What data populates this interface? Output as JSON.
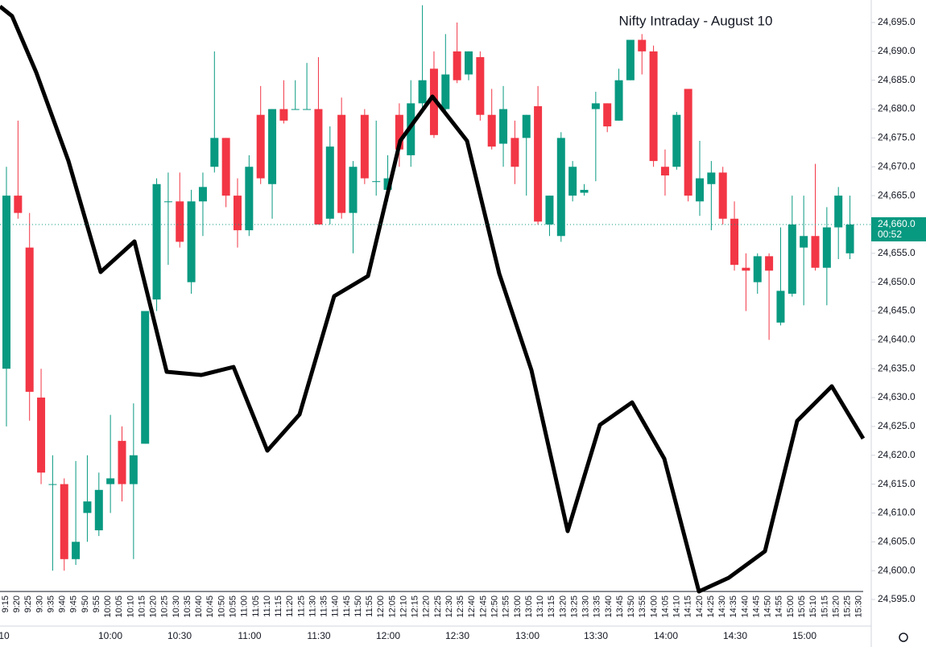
{
  "chart_data": {
    "type": "candlestick",
    "title": "Nifty Intraday - August 10",
    "up_color": "#089981",
    "down_color": "#f23645",
    "open": [
      24635,
      24665,
      24656,
      24630,
      24615,
      24615,
      24602,
      24610,
      24607,
      24615,
      24622.5,
      24615,
      24622,
      24647,
      24664,
      24664,
      24650,
      24664,
      24670,
      24675,
      24665,
      24659,
      24679,
      24667,
      24680,
      24680,
      24680,
      24680,
      24661,
      24679,
      24662,
      24679,
      24667.5,
      24666,
      24679,
      24672,
      24681,
      24687,
      24680,
      24690,
      24686,
      24689,
      24679,
      24674,
      24675,
      24675,
      24680.5,
      24660,
      24658,
      24665,
      24665.5,
      24680,
      24681,
      24678,
      24685,
      24692,
      24690,
      24670,
      24670,
      24683.5,
      24664,
      24667,
      24669,
      24661,
      24652.5,
      24650,
      24654.5,
      24643,
      24648,
      24656,
      24658,
      24652.5,
      24659.5,
      24655
    ],
    "high": [
      24670,
      24678,
      24662,
      24635,
      24620,
      24616,
      24619,
      24620,
      24617,
      24627,
      24625,
      24629,
      24645,
      24668,
      24669,
      24669,
      24666,
      24669,
      24690,
      24675,
      24668,
      24672,
      24684,
      24680,
      24685,
      24685,
      24688,
      24689,
      24677,
      24682,
      24671,
      24680,
      24678,
      24672,
      24681,
      24685,
      24698,
      24690,
      24693,
      24695,
      24690,
      24690,
      24683.5,
      24684,
      24678,
      24679,
      24684,
      24665,
      24676,
      24671,
      24667,
      24683,
      24681,
      24687,
      24692,
      24693,
      24691,
      24673,
      24679.5,
      24683.5,
      24674.5,
      24671,
      24670,
      24664,
      24655,
      24655,
      24655,
      24659.5,
      24665,
      24665,
      24670.5,
      24663,
      24666.5,
      24665
    ],
    "low": [
      24625,
      24661,
      24626,
      24615,
      24600,
      24600,
      24601,
      24605,
      24606,
      24610,
      24612,
      24602,
      24622,
      24645,
      24653,
      24656,
      24648,
      24658,
      24669,
      24663,
      24656,
      24658,
      24667,
      24661,
      24677.5,
      24680,
      24680,
      24660,
      24660,
      24661,
      24655,
      24667,
      24665,
      24664,
      24670,
      24670,
      24680,
      24675,
      24679.5,
      24684.5,
      24685,
      24678,
      24673,
      24670,
      24667,
      24665,
      24660,
      24658,
      24657,
      24664,
      24665,
      24667.5,
      24676,
      24678,
      24685,
      24686,
      24670,
      24665,
      24669.5,
      24664,
      24661.5,
      24659,
      24660,
      24652,
      24645,
      24648,
      24640,
      24642.5,
      24647.5,
      24646,
      24652,
      24646,
      24654,
      24654
    ],
    "close": [
      24665,
      24662,
      24631,
      24617,
      24615,
      24602,
      24605,
      24612,
      24614,
      24616,
      24615,
      24620,
      24645,
      24667,
      24664,
      24657,
      24664,
      24666.5,
      24675,
      24665,
      24659,
      24670,
      24668,
      24680,
      24678,
      24680,
      24680,
      24660,
      24673.5,
      24662,
      24670,
      24668,
      24667.5,
      24668,
      24673,
      24681,
      24685,
      24675.5,
      24686,
      24685,
      24690,
      24679,
      24673.5,
      24680,
      24670,
      24679,
      24660.5,
      24665,
      24675,
      24670,
      24666,
      24681,
      24677,
      24685,
      24692,
      24690,
      24671,
      24668.5,
      24679,
      24665,
      24668,
      24669,
      24661,
      24653,
      24652,
      24654.5,
      24652,
      24648.5,
      24660,
      24658,
      24652.5,
      24659.5,
      24665,
      24660
    ],
    "time_labels": [
      "9:15",
      "9:20",
      "9:25",
      "9:30",
      "9:35",
      "9:40",
      "9:45",
      "9:50",
      "9:55",
      "10:00",
      "10:05",
      "10:10",
      "10:15",
      "10:20",
      "10:25",
      "10:30",
      "10:35",
      "10:40",
      "10:45",
      "10:50",
      "10:55",
      "11:00",
      "11:05",
      "11:10",
      "11:15",
      "11:20",
      "11:25",
      "11:30",
      "11:35",
      "11:40",
      "11:45",
      "11:50",
      "11:55",
      "12:00",
      "12:05",
      "12:10",
      "12:15",
      "12:20",
      "12:25",
      "12:30",
      "12:35",
      "12:40",
      "12:45",
      "12:50",
      "12:55",
      "13:00",
      "13:05",
      "13:10",
      "13:15",
      "13:20",
      "13:25",
      "13:30",
      "13:35",
      "13:40",
      "13:45",
      "13:50",
      "13:55",
      "14:00",
      "14:05",
      "14:10",
      "14:15",
      "14:20",
      "14:25",
      "14:30",
      "14:35",
      "14:40",
      "14:45",
      "14:50",
      "14:55",
      "15:00",
      "15:05",
      "15:10",
      "15:15",
      "15:20",
      "15:25",
      "15:30"
    ],
    "axis_hours": [
      "10",
      "10:00",
      "10:30",
      "11:00",
      "11:30",
      "12:00",
      "12:30",
      "13:00",
      "13:30",
      "14:00",
      "14:30",
      "15:00"
    ],
    "ylim": [
      24592,
      24699
    ],
    "yticks": [
      {
        "value": 24595,
        "label": "24,595.0"
      },
      {
        "value": 24600,
        "label": "24,600.0"
      },
      {
        "value": 24605,
        "label": "24,605.0"
      },
      {
        "value": 24610,
        "label": "24,610.0"
      },
      {
        "value": 24615,
        "label": "24,615.0"
      },
      {
        "value": 24620,
        "label": "24,620.0"
      },
      {
        "value": 24625,
        "label": "24,625.0"
      },
      {
        "value": 24630,
        "label": "24,630.0"
      },
      {
        "value": 24635,
        "label": "24,635.0"
      },
      {
        "value": 24640,
        "label": "24,640.0"
      },
      {
        "value": 24645,
        "label": "24,645.0"
      },
      {
        "value": 24650,
        "label": "24,650.0"
      },
      {
        "value": 24655,
        "label": "24,655.0"
      },
      {
        "value": 24660,
        "label": "24,660.0"
      },
      {
        "value": 24665,
        "label": "24,665.0"
      },
      {
        "value": 24670,
        "label": "24,670.0"
      },
      {
        "value": 24675,
        "label": "24,675.0"
      },
      {
        "value": 24680,
        "label": "24,680.0"
      },
      {
        "value": 24685,
        "label": "24,685.0"
      },
      {
        "value": 24690,
        "label": "24,690.0"
      },
      {
        "value": 24695,
        "label": "24,695.0"
      }
    ],
    "current_price": {
      "value": 24660,
      "label": "24,660.0",
      "countdown": "00:52"
    }
  }
}
